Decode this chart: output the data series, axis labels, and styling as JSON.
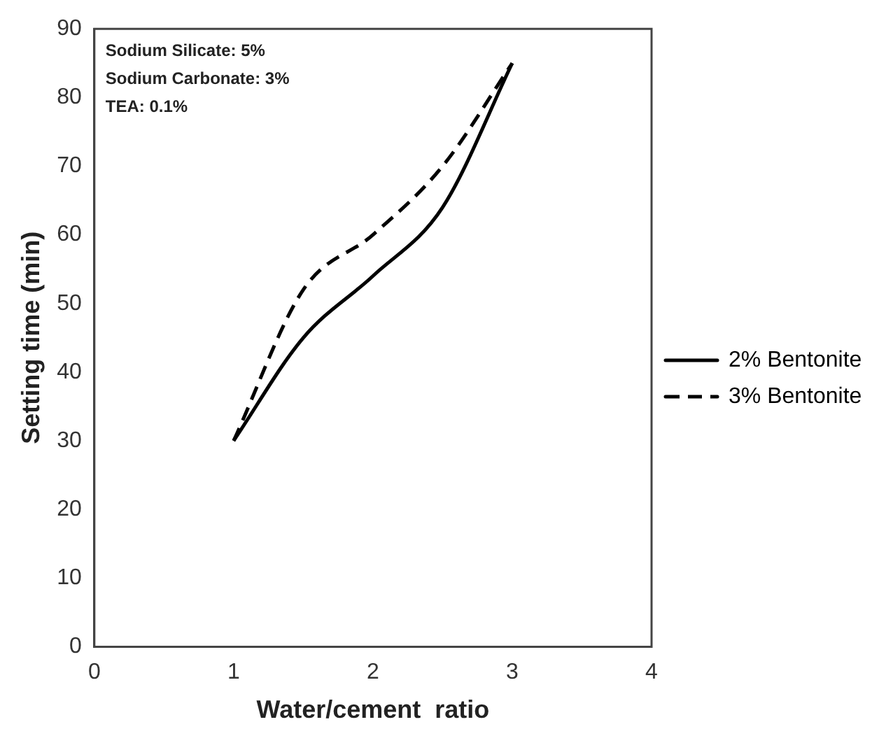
{
  "chart_data": {
    "type": "line",
    "xlabel": "Water/cement  ratio",
    "ylabel": "Setting time (min)",
    "x": [
      1,
      1.5,
      2,
      2.5,
      3
    ],
    "series": [
      {
        "name": "2% Bentonite",
        "color": "#000000",
        "values": [
          30,
          45,
          54,
          64,
          85
        ],
        "line_style": "solid"
      },
      {
        "name": "3% Bentonite",
        "color": "#000000",
        "values": [
          30,
          52,
          60,
          70,
          85
        ],
        "line_style": "dashed"
      }
    ],
    "xlim": [
      0,
      4
    ],
    "xticks": [
      0,
      1,
      2,
      3,
      4
    ],
    "ylim": [
      0,
      90
    ],
    "yticks": [
      0,
      10,
      20,
      30,
      40,
      50,
      60,
      70,
      80,
      90
    ],
    "grid": false,
    "legend": "right",
    "marker": "none",
    "annotations": [
      "Sodium Silicate: 5%",
      "Sodium Carbonate: 3%",
      "TEA: 0.1%"
    ]
  }
}
